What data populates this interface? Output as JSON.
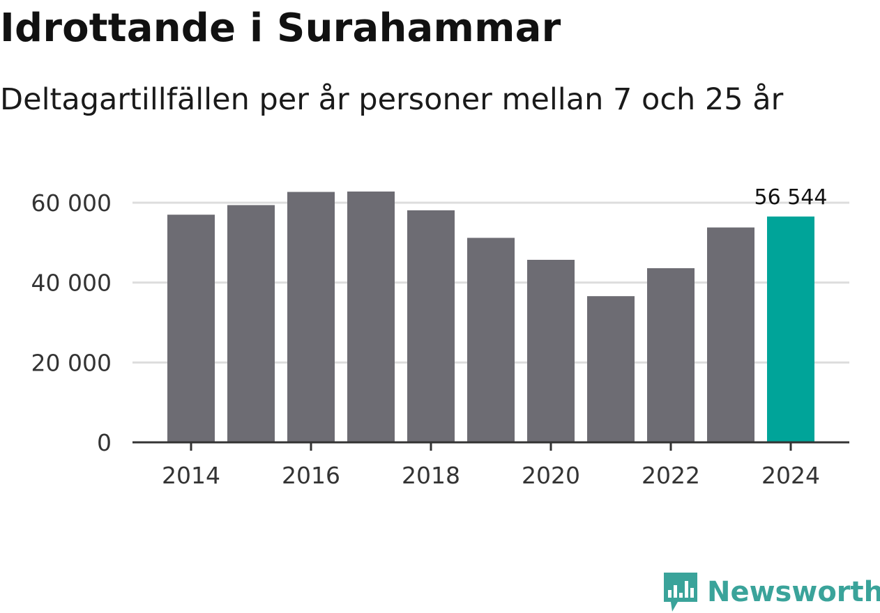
{
  "header": {
    "title": "Idrottande i Surahammar",
    "subtitle": "Deltagartillfällen per år personer mellan 7 och 25 år"
  },
  "chart_data": {
    "type": "bar",
    "title": "Idrottande i Surahammar",
    "subtitle": "Deltagartillfällen per år personer mellan 7 och 25 år",
    "xlabel": "",
    "ylabel": "",
    "categories": [
      "2014",
      "2015",
      "2016",
      "2017",
      "2018",
      "2019",
      "2020",
      "2021",
      "2022",
      "2023",
      "2024"
    ],
    "values": [
      57000,
      59400,
      62700,
      62800,
      58100,
      51200,
      45700,
      36600,
      43600,
      53800,
      56544
    ],
    "ylim": [
      0,
      60000
    ],
    "yticks": [
      0,
      20000,
      40000,
      60000
    ],
    "ytick_labels": [
      "0",
      "20 000",
      "40 000",
      "60 000"
    ],
    "xticks": [
      "2014",
      "2016",
      "2018",
      "2020",
      "2022",
      "2024"
    ],
    "highlight_index": 10,
    "highlight_label": "56 544",
    "grid": true,
    "colors": {
      "bar": "#6d6c73",
      "highlight": "#00a499",
      "grid": "#dddddd",
      "axis": "#333333",
      "tick_text": "#333333"
    }
  },
  "brand": {
    "name": "Newsworthy",
    "icon": "newsworthy-logo-icon",
    "color": "#3aa39a"
  }
}
